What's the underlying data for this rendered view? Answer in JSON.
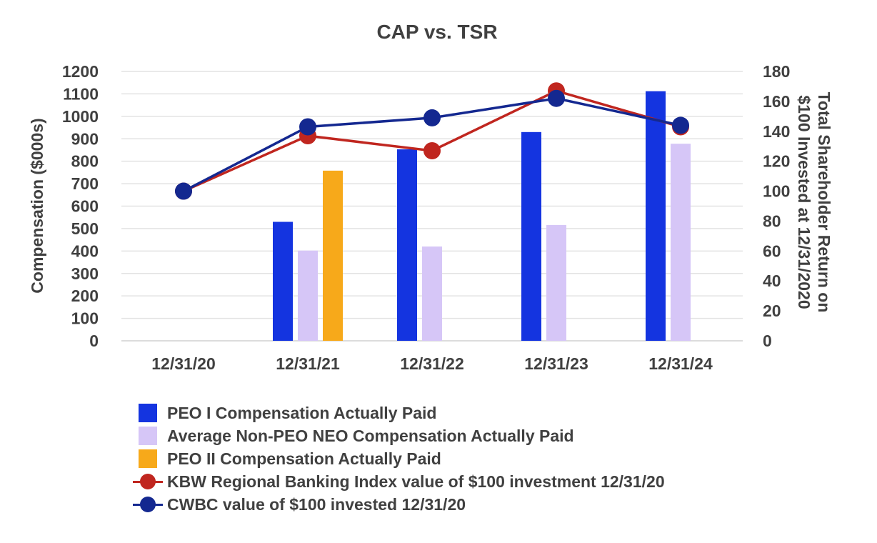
{
  "chart_data": {
    "type": "bar+line",
    "title": "CAP vs. TSR",
    "categories": [
      "12/31/20",
      "12/31/21",
      "12/31/22",
      "12/31/23",
      "12/31/24"
    ],
    "ylabel": "Compensation ($000s)",
    "y2label_line1": "Total Shareholder Return on",
    "y2label_line2": "$100 Invested at 12/31/2020",
    "ylim": [
      0,
      1200
    ],
    "yticks": [
      "1200",
      "1100",
      "1000",
      "900",
      "800",
      "700",
      "600",
      "500",
      "400",
      "300",
      "200",
      "100",
      "0"
    ],
    "y2lim": [
      0,
      180
    ],
    "y2ticks": [
      "180",
      "160",
      "140",
      "120",
      "100",
      "80",
      "60",
      "40",
      "20",
      "0"
    ],
    "bar_series": [
      {
        "name": "PEO I Compensation Actually Paid",
        "color": "#1434e0",
        "values": [
          null,
          530,
          853,
          930,
          1112
        ]
      },
      {
        "name": "Average Non-PEO NEO Compensation Actually Paid",
        "color": "#d6c6f7",
        "values": [
          null,
          402,
          420,
          516,
          878
        ]
      },
      {
        "name": "PEO II Compensation Actually Paid",
        "color": "#f7a91a",
        "values": [
          null,
          758,
          null,
          null,
          null
        ]
      }
    ],
    "line_series": [
      {
        "name": "KBW Regional Banking Index value of $100 investment 12/31/20",
        "color": "#c0261f",
        "values": [
          100,
          137,
          127,
          167,
          143
        ]
      },
      {
        "name": "CWBC value of $100 invested 12/31/20",
        "color": "#142890",
        "values": [
          100,
          143,
          149,
          162,
          144
        ]
      }
    ],
    "grid": true,
    "legend_position": "bottom"
  }
}
